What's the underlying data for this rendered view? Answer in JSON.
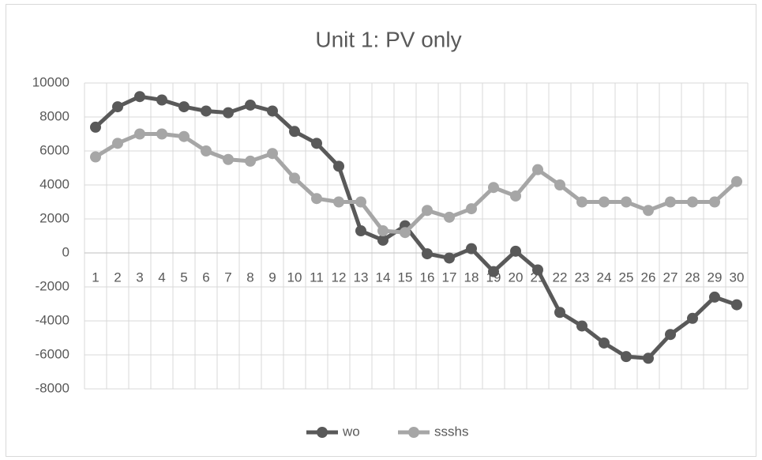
{
  "chart_data": {
    "type": "line",
    "title": "Unit 1: PV only",
    "categories": [
      "1",
      "2",
      "3",
      "4",
      "5",
      "6",
      "7",
      "8",
      "9",
      "10",
      "11",
      "12",
      "13",
      "14",
      "15",
      "16",
      "17",
      "18",
      "19",
      "20",
      "21",
      "22",
      "23",
      "24",
      "25",
      "26",
      "27",
      "28",
      "29",
      "30"
    ],
    "series": [
      {
        "name": "wo",
        "color": "#595959",
        "values": [
          7400,
          8600,
          9200,
          9000,
          8600,
          8350,
          8250,
          8700,
          8350,
          7150,
          6450,
          5100,
          1300,
          750,
          1600,
          -50,
          -300,
          250,
          -1100,
          100,
          -1000,
          -3500,
          -4300,
          -5300,
          -6100,
          -6200,
          -4800,
          -3850,
          -2600,
          -3050
        ]
      },
      {
        "name": "ssshs",
        "color": "#a6a6a6",
        "values": [
          5650,
          6450,
          7000,
          7000,
          6850,
          6000,
          5500,
          5400,
          5850,
          4400,
          3200,
          3000,
          3000,
          1300,
          1200,
          2500,
          2100,
          2600,
          3850,
          3350,
          4900,
          4000,
          3000,
          3000,
          3000,
          2500,
          3000,
          3000,
          3000,
          4200
        ]
      }
    ],
    "ylim": [
      -8000,
      10000
    ],
    "yticks": [
      -8000,
      -6000,
      -4000,
      -2000,
      0,
      2000,
      4000,
      6000,
      8000,
      10000
    ],
    "grid": true,
    "legend": "bottom"
  }
}
